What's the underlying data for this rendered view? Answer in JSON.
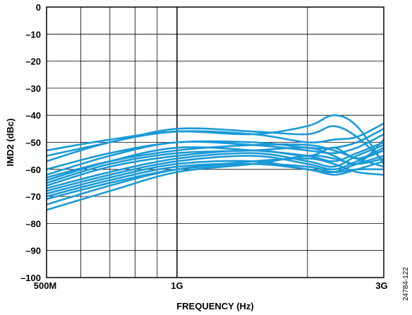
{
  "chart_data": {
    "type": "line",
    "title": "",
    "xlabel": "FREQUENCY (Hz)",
    "ylabel": "IMD2 (dBc)",
    "x_scale": "log",
    "xlim": [
      500000000,
      3000000000
    ],
    "ylim": [
      -100,
      0
    ],
    "grid": true,
    "legend": "none",
    "line_color": "#1a9ad6",
    "x_tick_labels": [
      {
        "value": 500000000,
        "label": "500M"
      },
      {
        "value": 1000000000,
        "label": "1G"
      },
      {
        "value": 3000000000,
        "label": "3G"
      }
    ],
    "x_gridlines": [
      500000000,
      600000000,
      700000000,
      800000000,
      900000000,
      1000000000,
      2000000000,
      3000000000
    ],
    "y_ticks": [
      0,
      -10,
      -20,
      -30,
      -40,
      -50,
      -60,
      -70,
      -80,
      -90,
      -100
    ],
    "y_tick_labels": [
      "0",
      "–10",
      "–20",
      "–30",
      "–40",
      "–50",
      "–60",
      "–70",
      "–80",
      "–90",
      "–100"
    ],
    "series": [
      {
        "x": [
          500000000,
          700000000,
          1000000000,
          1500000000,
          2000000000,
          2300000000,
          2600000000,
          3000000000
        ],
        "values": [
          -53,
          -49,
          -46,
          -47,
          -44,
          -40,
          -44,
          -58
        ]
      },
      {
        "x": [
          500000000,
          700000000,
          1000000000,
          1500000000,
          2000000000,
          2300000000,
          2600000000,
          3000000000
        ],
        "values": [
          -55,
          -50,
          -45,
          -46,
          -47,
          -44,
          -48,
          -57
        ]
      },
      {
        "x": [
          500000000,
          700000000,
          1000000000,
          1500000000,
          2000000000,
          2300000000,
          2600000000,
          3000000000
        ],
        "values": [
          -57,
          -50,
          -46,
          -47,
          -50,
          -49,
          -48,
          -43
        ]
      },
      {
        "x": [
          500000000,
          700000000,
          1000000000,
          1500000000,
          2000000000,
          2300000000,
          2600000000,
          3000000000
        ],
        "values": [
          -60,
          -54,
          -50,
          -50,
          -52,
          -52,
          -50,
          -45
        ]
      },
      {
        "x": [
          500000000,
          700000000,
          1000000000,
          1500000000,
          2000000000,
          2300000000,
          2600000000,
          3000000000
        ],
        "values": [
          -62,
          -55,
          -50,
          -51,
          -53,
          -54,
          -52,
          -47
        ]
      },
      {
        "x": [
          500000000,
          700000000,
          1000000000,
          1500000000,
          2000000000,
          2300000000,
          2600000000,
          3000000000
        ],
        "values": [
          -64,
          -57,
          -52,
          -53,
          -55,
          -57,
          -54,
          -50
        ]
      },
      {
        "x": [
          500000000,
          700000000,
          1000000000,
          1500000000,
          2000000000,
          2300000000,
          2600000000,
          3000000000
        ],
        "values": [
          -66,
          -59,
          -55,
          -53,
          -55,
          -52,
          -56,
          -52
        ]
      },
      {
        "x": [
          500000000,
          700000000,
          1000000000,
          1500000000,
          2000000000,
          2300000000,
          2600000000,
          3000000000
        ],
        "values": [
          -67,
          -61,
          -56,
          -54,
          -57,
          -59,
          -55,
          -51
        ]
      },
      {
        "x": [
          500000000,
          700000000,
          1000000000,
          1500000000,
          2000000000,
          2300000000,
          2600000000,
          3000000000
        ],
        "values": [
          -68,
          -62,
          -57,
          -55,
          -58,
          -60,
          -57,
          -53
        ]
      },
      {
        "x": [
          500000000,
          700000000,
          1000000000,
          1500000000,
          2000000000,
          2300000000,
          2600000000,
          3000000000
        ],
        "values": [
          -69,
          -63,
          -58,
          -57,
          -60,
          -61,
          -58,
          -55
        ]
      },
      {
        "x": [
          500000000,
          700000000,
          1000000000,
          1500000000,
          2000000000,
          2300000000,
          2600000000,
          3000000000
        ],
        "values": [
          -70,
          -64,
          -59,
          -58,
          -60,
          -62,
          -60,
          -57
        ]
      },
      {
        "x": [
          500000000,
          700000000,
          1000000000,
          1500000000,
          2000000000,
          2300000000,
          2600000000,
          3000000000
        ],
        "values": [
          -71,
          -65,
          -60,
          -58,
          -59,
          -61,
          -60,
          -60
        ]
      },
      {
        "x": [
          500000000,
          700000000,
          1000000000,
          1500000000,
          2000000000,
          2300000000,
          2600000000,
          3000000000
        ],
        "values": [
          -73,
          -66,
          -60,
          -57,
          -56,
          -58,
          -61,
          -62
        ]
      },
      {
        "x": [
          500000000,
          700000000,
          1000000000,
          1500000000,
          2000000000,
          2300000000,
          2600000000,
          3000000000
        ],
        "values": [
          -75,
          -68,
          -61,
          -58,
          -55,
          -56,
          -58,
          -56
        ]
      },
      {
        "x": [
          500000000,
          700000000,
          1000000000,
          1500000000,
          2000000000,
          2300000000,
          2600000000,
          3000000000
        ],
        "values": [
          -65,
          -58,
          -54,
          -53,
          -52,
          -55,
          -58,
          -49
        ]
      },
      {
        "x": [
          500000000,
          700000000,
          1000000000,
          1500000000,
          2000000000,
          2300000000,
          2600000000,
          3000000000
        ],
        "values": [
          -63,
          -57,
          -53,
          -51,
          -51,
          -53,
          -56,
          -59
        ]
      }
    ]
  },
  "figure_id": "24784-122"
}
